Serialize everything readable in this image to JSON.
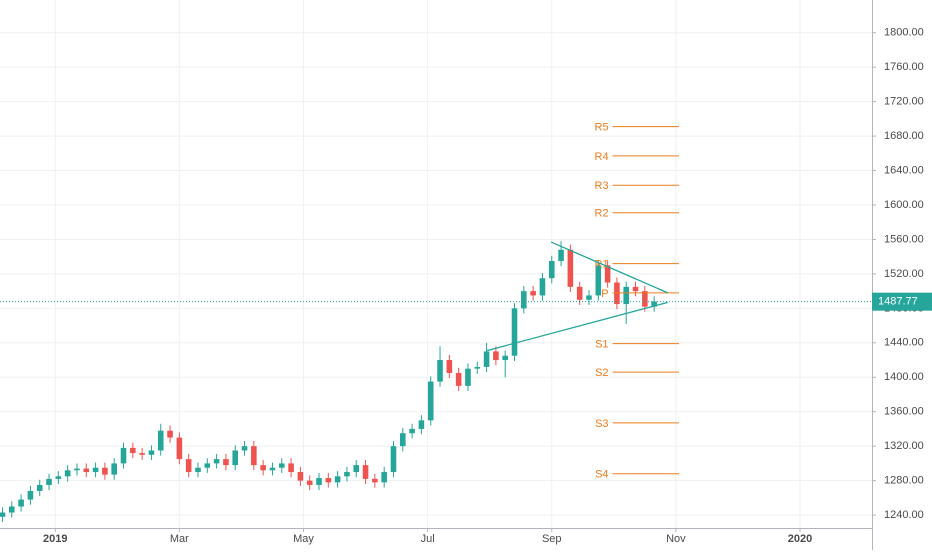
{
  "chart_data": {
    "type": "candlestick",
    "x": [
      -0.85,
      -0.7,
      -0.55,
      -0.4,
      -0.25,
      -0.1,
      0.05,
      0.2,
      0.35,
      0.5,
      0.65,
      0.8,
      0.95,
      1.1,
      1.25,
      1.4,
      1.55,
      1.7,
      1.85,
      2.0,
      2.15,
      2.3,
      2.45,
      2.6,
      2.75,
      2.9,
      3.05,
      3.2,
      3.35,
      3.5,
      3.65,
      3.8,
      3.95,
      4.1,
      4.25,
      4.4,
      4.55,
      4.7,
      4.85,
      5.0,
      5.15,
      5.3,
      5.45,
      5.6,
      5.75,
      5.9,
      6.05,
      6.2,
      6.35,
      6.5,
      6.65,
      6.8,
      6.95,
      7.1,
      7.25,
      7.4,
      7.55,
      7.7,
      7.85,
      8.0,
      8.15,
      8.3,
      8.45,
      8.6,
      8.75,
      8.9,
      9.05,
      9.2,
      9.35,
      9.5,
      9.65
    ],
    "open": [
      1238,
      1243,
      1250,
      1258,
      1268,
      1275,
      1282,
      1285,
      1292,
      1294,
      1290,
      1295,
      1287,
      1300,
      1318,
      1312,
      1310,
      1315,
      1338,
      1330,
      1305,
      1290,
      1295,
      1300,
      1305,
      1298,
      1315,
      1320,
      1298,
      1292,
      1295,
      1300,
      1290,
      1280,
      1275,
      1283,
      1278,
      1285,
      1290,
      1298,
      1282,
      1278,
      1290,
      1320,
      1335,
      1340,
      1350,
      1395,
      1420,
      1405,
      1390,
      1410,
      1412,
      1430,
      1420,
      1425,
      1480,
      1500,
      1495,
      1515,
      1535,
      1548,
      1505,
      1490,
      1495,
      1530,
      1510,
      1485,
      1505,
      1500,
      1482
    ],
    "high": [
      1249,
      1256,
      1264,
      1274,
      1281,
      1288,
      1291,
      1298,
      1300,
      1300,
      1301,
      1301,
      1306,
      1324,
      1324,
      1318,
      1321,
      1346,
      1344,
      1336,
      1311,
      1301,
      1306,
      1311,
      1311,
      1321,
      1326,
      1326,
      1304,
      1301,
      1306,
      1306,
      1296,
      1286,
      1289,
      1289,
      1291,
      1296,
      1304,
      1304,
      1288,
      1296,
      1326,
      1341,
      1346,
      1356,
      1401,
      1436,
      1426,
      1411,
      1416,
      1418,
      1440,
      1436,
      1431,
      1486,
      1506,
      1506,
      1521,
      1541,
      1558,
      1554,
      1511,
      1501,
      1536,
      1536,
      1516,
      1511,
      1511,
      1506,
      1494
    ],
    "low": [
      1232,
      1237,
      1244,
      1252,
      1262,
      1269,
      1276,
      1279,
      1286,
      1284,
      1284,
      1281,
      1281,
      1294,
      1306,
      1304,
      1304,
      1309,
      1324,
      1299,
      1284,
      1284,
      1289,
      1294,
      1292,
      1292,
      1309,
      1292,
      1286,
      1286,
      1289,
      1284,
      1274,
      1269,
      1269,
      1272,
      1272,
      1279,
      1284,
      1276,
      1272,
      1272,
      1284,
      1314,
      1329,
      1334,
      1344,
      1389,
      1399,
      1384,
      1384,
      1404,
      1406,
      1414,
      1400,
      1419,
      1474,
      1489,
      1489,
      1509,
      1529,
      1499,
      1484,
      1484,
      1489,
      1504,
      1479,
      1462,
      1494,
      1476,
      1476
    ],
    "close": [
      1243,
      1250,
      1258,
      1268,
      1275,
      1282,
      1285,
      1292,
      1294,
      1290,
      1295,
      1287,
      1300,
      1318,
      1312,
      1310,
      1315,
      1338,
      1330,
      1305,
      1290,
      1295,
      1300,
      1305,
      1298,
      1315,
      1320,
      1298,
      1292,
      1295,
      1300,
      1290,
      1280,
      1275,
      1283,
      1278,
      1285,
      1290,
      1298,
      1282,
      1278,
      1290,
      1320,
      1335,
      1340,
      1350,
      1395,
      1420,
      1405,
      1390,
      1410,
      1412,
      1430,
      1420,
      1425,
      1480,
      1500,
      1495,
      1515,
      1535,
      1548,
      1505,
      1490,
      1495,
      1530,
      1510,
      1485,
      1505,
      1500,
      1482,
      1488
    ],
    "up_color": "#26a69a",
    "down_color": "#ef5350",
    "xlim": [
      -0.89,
      13.16
    ],
    "xticks": [
      {
        "value": 0,
        "label": "2019"
      },
      {
        "value": 2,
        "label": "Mar"
      },
      {
        "value": 4,
        "label": "May"
      },
      {
        "value": 6,
        "label": "Jul"
      },
      {
        "value": 8,
        "label": "Sep"
      },
      {
        "value": 10,
        "label": "Nov"
      },
      {
        "value": 12,
        "label": "2020"
      }
    ],
    "ylim": [
      1225,
      1838
    ],
    "yticks": [
      {
        "value": 1240,
        "label": "1240.00"
      },
      {
        "value": 1280,
        "label": "1280.00"
      },
      {
        "value": 1320,
        "label": "1320.00"
      },
      {
        "value": 1360,
        "label": "1360.00"
      },
      {
        "value": 1400,
        "label": "1400.00"
      },
      {
        "value": 1440,
        "label": "1440.00"
      },
      {
        "value": 1480,
        "label": "1480.00"
      },
      {
        "value": 1520,
        "label": "1520.00"
      },
      {
        "value": 1560,
        "label": "1560.00"
      },
      {
        "value": 1600,
        "label": "1600.00"
      },
      {
        "value": 1640,
        "label": "1640.00"
      },
      {
        "value": 1680,
        "label": "1680.00"
      },
      {
        "value": 1720,
        "label": "1720.00"
      },
      {
        "value": 1760,
        "label": "1760.00"
      },
      {
        "value": 1800,
        "label": "1800.00"
      }
    ],
    "grid": true,
    "last_price": 1487.77,
    "last_price_color": "#26a69a",
    "pivot_color": "#ef7b1a",
    "pivot_x": [
      8.98,
      10.05
    ],
    "pivots": [
      {
        "label": "R5",
        "value": 1691
      },
      {
        "label": "R4",
        "value": 1657
      },
      {
        "label": "R3",
        "value": 1623
      },
      {
        "label": "R2",
        "value": 1591
      },
      {
        "label": "R1",
        "value": 1532
      },
      {
        "label": "P",
        "value": 1498
      },
      {
        "label": "S1",
        "value": 1439
      },
      {
        "label": "S2",
        "value": 1406
      },
      {
        "label": "S3",
        "value": 1347
      },
      {
        "label": "S4",
        "value": 1288
      }
    ],
    "trendline_color": "#26a69a",
    "trendlines": [
      {
        "x": [
          7.99,
          9.87
        ],
        "y": [
          1557,
          1498
        ]
      },
      {
        "x": [
          6.96,
          9.87
        ],
        "y": [
          1431,
          1487
        ]
      }
    ]
  }
}
